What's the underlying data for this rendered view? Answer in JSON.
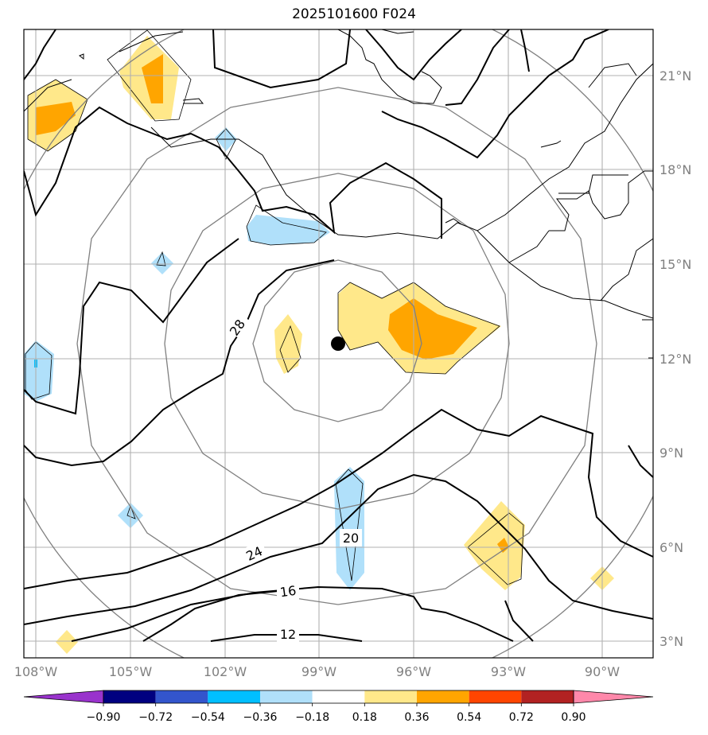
{
  "title": "2025101600 F024",
  "longitude_labels": [
    "108°W",
    "105°W",
    "102°W",
    "99°W",
    "96°W",
    "93°W",
    "90°W"
  ],
  "latitude_labels": [
    "3°N",
    "6°N",
    "9°N",
    "12°N",
    "15°N",
    "18°N",
    "21°N"
  ],
  "contour_labels": [
    "28",
    "24",
    "20",
    "16",
    "12"
  ],
  "colorbar": {
    "ticks": [
      "−0.90",
      "−0.72",
      "−0.54",
      "−0.36",
      "−0.18",
      "0.18",
      "0.36",
      "0.54",
      "0.72",
      "0.90"
    ],
    "colors": [
      "#9933cc",
      "#000080",
      "#3355cc",
      "#00bfff",
      "#b0e0fa",
      "#ffffff",
      "#ffe88a",
      "#ffa500",
      "#ff4500",
      "#b22222",
      "#ff88aa"
    ]
  },
  "center_marker": {
    "lon": -98.4,
    "lat": 12.4
  }
}
